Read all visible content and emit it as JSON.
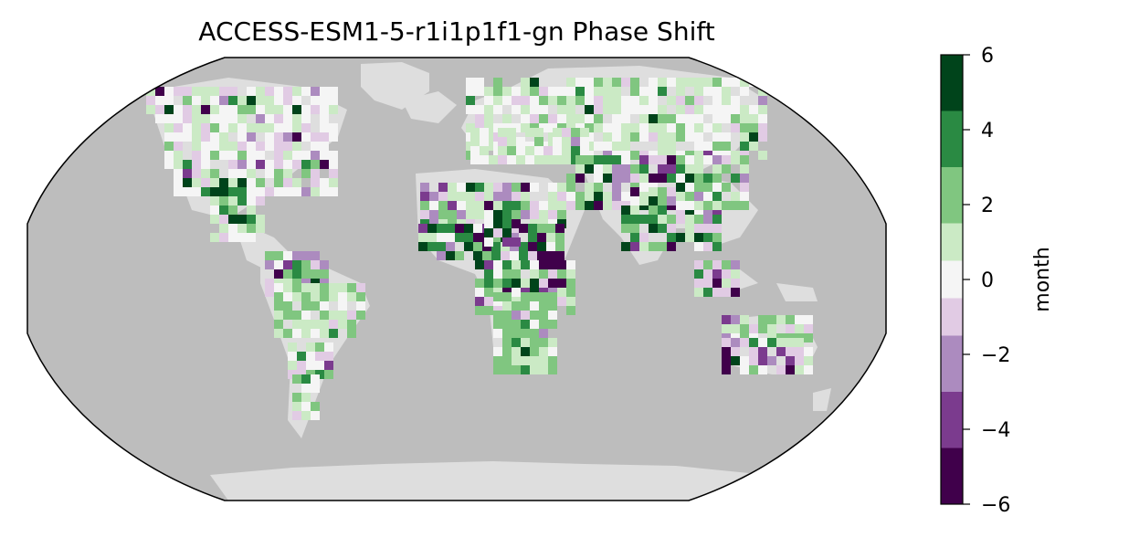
{
  "title": "ACCESS-ESM1-5-r1i1p1f1-gn Phase Shift",
  "colors": {
    "ocean": "#bdbdbd",
    "land_no_data": "#dedede",
    "outline": "#000000"
  },
  "colorbar": {
    "label": "month",
    "range": [
      -6,
      6
    ],
    "ticks": [
      {
        "value": 6,
        "label": "6"
      },
      {
        "value": 4,
        "label": "4"
      },
      {
        "value": 2,
        "label": "2"
      },
      {
        "value": 0,
        "label": "0"
      },
      {
        "value": -2,
        "label": "−2"
      },
      {
        "value": -4,
        "label": "−4"
      },
      {
        "value": -6,
        "label": "−6"
      }
    ],
    "bins": [
      {
        "from": 4.5,
        "to": 6,
        "color": "#00441b"
      },
      {
        "from": 3,
        "to": 4.5,
        "color": "#2a8a43"
      },
      {
        "from": 1.5,
        "to": 3,
        "color": "#80c680"
      },
      {
        "from": 0.5,
        "to": 1.5,
        "color": "#cbeac5"
      },
      {
        "from": -0.5,
        "to": 0.5,
        "color": "#f5f5f5"
      },
      {
        "from": -1.5,
        "to": -0.5,
        "color": "#e1cbe4"
      },
      {
        "from": -3,
        "to": -1.5,
        "color": "#ac8bbf"
      },
      {
        "from": -4.5,
        "to": -3,
        "color": "#7b3b8e"
      },
      {
        "from": -6,
        "to": -4.5,
        "color": "#40004b"
      }
    ]
  },
  "projection": "Robinson"
}
